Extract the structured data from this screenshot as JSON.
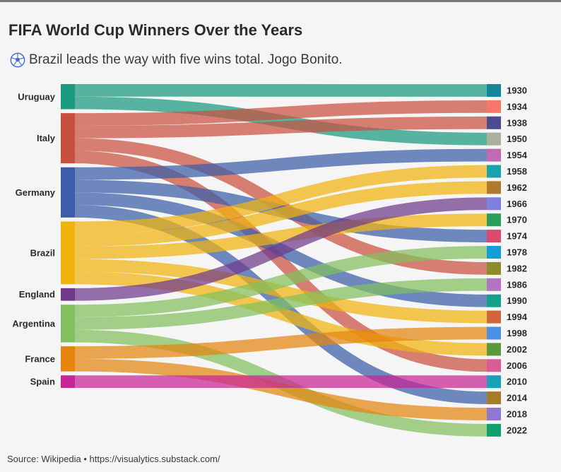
{
  "title": "FIFA World Cup Winners Over the Years",
  "subtitle": "Brazil leads the way with five wins total. Jogo Bonito.",
  "subtitle_icon": "soccer-ball-icon",
  "source": "Source: Wikipedia • https://visualytics.substack.com/",
  "chart_data": {
    "type": "sankey",
    "title": "FIFA World Cup Winners Over the Years",
    "left_nodes": [
      {
        "name": "Uruguay",
        "color": "#1a9a7f"
      },
      {
        "name": "Italy",
        "color": "#c9503f"
      },
      {
        "name": "Germany",
        "color": "#3a5ea8"
      },
      {
        "name": "Brazil",
        "color": "#f1b40e"
      },
      {
        "name": "England",
        "color": "#6d3a8a"
      },
      {
        "name": "Argentina",
        "color": "#82bf5e"
      },
      {
        "name": "France",
        "color": "#e5850f"
      },
      {
        "name": "Spain",
        "color": "#c72496"
      }
    ],
    "right_nodes": [
      {
        "year": "1930",
        "color": "#12879a"
      },
      {
        "year": "1934",
        "color": "#f7786a"
      },
      {
        "year": "1938",
        "color": "#4a4c8f"
      },
      {
        "year": "1950",
        "color": "#a9b19c"
      },
      {
        "year": "1954",
        "color": "#c06ab3"
      },
      {
        "year": "1958",
        "color": "#17a2ad"
      },
      {
        "year": "1962",
        "color": "#b07a2b"
      },
      {
        "year": "1966",
        "color": "#7f7fdf"
      },
      {
        "year": "1970",
        "color": "#2a9e5c"
      },
      {
        "year": "1974",
        "color": "#d94a6e"
      },
      {
        "year": "1978",
        "color": "#129fd9"
      },
      {
        "year": "1982",
        "color": "#8c8c28"
      },
      {
        "year": "1986",
        "color": "#b474c5"
      },
      {
        "year": "1990",
        "color": "#14a08a"
      },
      {
        "year": "1994",
        "color": "#d0643c"
      },
      {
        "year": "1998",
        "color": "#4a90e2"
      },
      {
        "year": "2002",
        "color": "#5a9a3a"
      },
      {
        "year": "2006",
        "color": "#d85c9a"
      },
      {
        "year": "2010",
        "color": "#1aa0b8"
      },
      {
        "year": "2014",
        "color": "#a57c28"
      },
      {
        "year": "2018",
        "color": "#8f78d2"
      },
      {
        "year": "2022",
        "color": "#10a06a"
      }
    ],
    "links": [
      {
        "country": "Uruguay",
        "year": "1930",
        "value": 1
      },
      {
        "country": "Uruguay",
        "year": "1950",
        "value": 1
      },
      {
        "country": "Italy",
        "year": "1934",
        "value": 1
      },
      {
        "country": "Italy",
        "year": "1938",
        "value": 1
      },
      {
        "country": "Italy",
        "year": "1982",
        "value": 1
      },
      {
        "country": "Italy",
        "year": "2006",
        "value": 1
      },
      {
        "country": "Germany",
        "year": "1954",
        "value": 1
      },
      {
        "country": "Germany",
        "year": "1974",
        "value": 1
      },
      {
        "country": "Germany",
        "year": "1990",
        "value": 1
      },
      {
        "country": "Germany",
        "year": "2014",
        "value": 1
      },
      {
        "country": "Brazil",
        "year": "1958",
        "value": 1
      },
      {
        "country": "Brazil",
        "year": "1962",
        "value": 1
      },
      {
        "country": "Brazil",
        "year": "1970",
        "value": 1
      },
      {
        "country": "Brazil",
        "year": "1994",
        "value": 1
      },
      {
        "country": "Brazil",
        "year": "2002",
        "value": 1
      },
      {
        "country": "England",
        "year": "1966",
        "value": 1
      },
      {
        "country": "Argentina",
        "year": "1978",
        "value": 1
      },
      {
        "country": "Argentina",
        "year": "1986",
        "value": 1
      },
      {
        "country": "Argentina",
        "year": "2022",
        "value": 1
      },
      {
        "country": "France",
        "year": "1998",
        "value": 1
      },
      {
        "country": "France",
        "year": "2018",
        "value": 1
      },
      {
        "country": "Spain",
        "year": "2010",
        "value": 1
      }
    ]
  }
}
